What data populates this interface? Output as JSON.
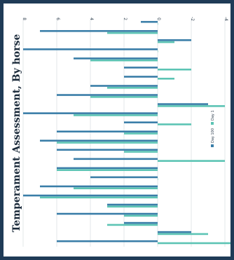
{
  "colors": {
    "frame": "#1f3b57",
    "background": "#ffffff",
    "day100": "#3a7ea8",
    "day1": "#5cc4b4",
    "grid": "#e3e7ea",
    "tick_text": "#2f3f4f",
    "title_text": "#1a2a3a"
  },
  "chart_data": {
    "type": "bar",
    "orientation": "rotated 90 degrees clockwise (categories run top to bottom, values increase to the left)",
    "title": "Temperament Assessment, By horse",
    "xlabel": "",
    "ylabel": "",
    "ylim": [
      -5,
      8
    ],
    "yticks": [
      8,
      6,
      4,
      2,
      0,
      -2,
      -4
    ],
    "grid": true,
    "legend_position": "right",
    "categories_shown": false,
    "series": [
      {
        "name": "Day 100",
        "color": "#3a7ea8",
        "values": [
          1,
          7,
          -2,
          8,
          5,
          2,
          2,
          4,
          6,
          -3,
          8,
          2,
          6,
          7,
          6,
          5,
          6,
          4,
          7,
          8,
          3,
          6,
          2,
          -2,
          6
        ]
      },
      {
        "name": "Day 1",
        "color": "#5cc4b4",
        "values": [
          0,
          3,
          -1,
          0,
          4,
          -2,
          -1,
          3,
          4,
          -4,
          5,
          -2,
          2,
          6,
          2,
          -4,
          6,
          0,
          5,
          7,
          3,
          2,
          3,
          -3,
          -5
        ]
      }
    ]
  }
}
